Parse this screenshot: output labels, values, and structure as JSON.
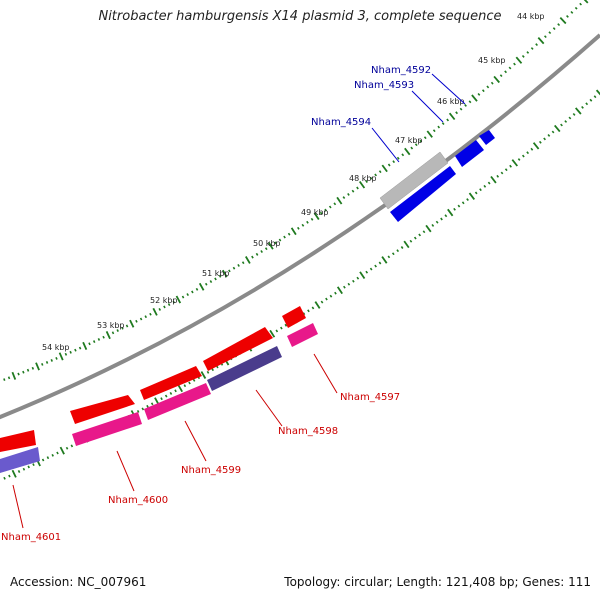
{
  "title": "Nitrobacter hamburgensis X14 plasmid 3, complete sequence",
  "footer": {
    "accession": "Accession: NC_007961",
    "summary": "Topology: circular; Length: 121,408 bp; Genes: 111"
  },
  "colors": {
    "backbone": "#8a8a8a",
    "ruler": "#1f7a1f",
    "forward_gene": "#ee0000",
    "forward_label": "#cc0000",
    "reverse_gene": "#e8188a",
    "reverse_gene_dark": "#4a3c8c",
    "reverse_gene_light": "#6a5acd",
    "blue_gene": "#0000e6",
    "blue_label": "#000099",
    "pseudo_gene": "#b8b8b8"
  },
  "ruler_labels": [
    "44 kbp",
    "45 kbp",
    "46 kbp",
    "47 kbp",
    "48 kbp",
    "49 kbp",
    "50 kbp",
    "51 kbp",
    "52 kbp",
    "53 kbp",
    "54 kbp"
  ],
  "gene_labels": [
    {
      "text": "Nham_4592",
      "color": "#000099"
    },
    {
      "text": "Nham_4593",
      "color": "#000099"
    },
    {
      "text": "Nham_4594",
      "color": "#000099"
    },
    {
      "text": "Nham_4597",
      "color": "#cc0000"
    },
    {
      "text": "Nham_4598",
      "color": "#cc0000"
    },
    {
      "text": "Nham_4599",
      "color": "#cc0000"
    },
    {
      "text": "Nham_4600",
      "color": "#cc0000"
    },
    {
      "text": "Nham_4601",
      "color": "#cc0000"
    }
  ]
}
